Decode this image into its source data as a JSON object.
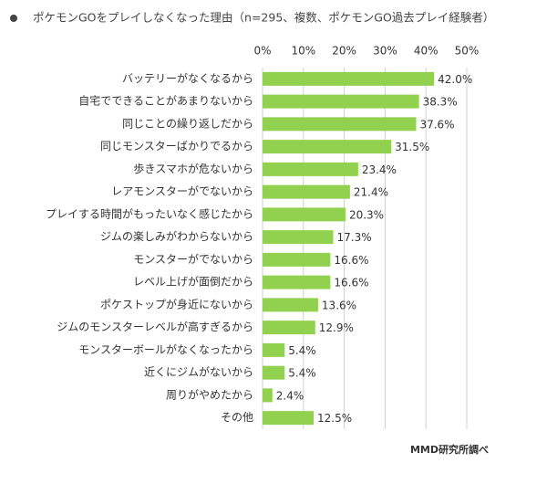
{
  "chart_data": {
    "type": "bar",
    "orientation": "horizontal",
    "title": "ポケモンGOをプレイしなくなった理由（n=295、複数、ポケモンGO過去プレイ経験者）",
    "categories": [
      "バッテリーがなくなるから",
      "自宅でできることがあまりないから",
      "同じことの繰り返しだから",
      "同じモンスターばかりでるから",
      "歩きスマホが危ないから",
      "レアモンスターがでないから",
      "プレイする時間がもったいなく感じたから",
      "ジムの楽しみがわからないから",
      "モンスターがでないから",
      "レベル上げが面倒だから",
      "ポケストップが身近にないから",
      "ジムのモンスターレベルが高すぎるから",
      "モンスターボールがなくなったから",
      "近くにジムがないから",
      "周りがやめたから",
      "その他"
    ],
    "values": [
      42.0,
      38.3,
      37.6,
      31.5,
      23.4,
      21.4,
      20.3,
      17.3,
      16.6,
      16.6,
      13.6,
      12.9,
      5.4,
      5.4,
      2.4,
      12.5
    ],
    "value_labels": [
      "42.0%",
      "38.3%",
      "37.6%",
      "31.5%",
      "23.4%",
      "21.4%",
      "20.3%",
      "17.3%",
      "16.6%",
      "16.6%",
      "13.6%",
      "12.9%",
      "5.4%",
      "5.4%",
      "2.4%",
      "12.5%"
    ],
    "color": "#92d050",
    "xlim": [
      0,
      50
    ],
    "xticks": [
      {
        "value": 0,
        "label": "0%"
      },
      {
        "value": 10,
        "label": "10%"
      },
      {
        "value": 20,
        "label": "20%"
      },
      {
        "value": 30,
        "label": "30%"
      },
      {
        "value": 40,
        "label": "40%"
      },
      {
        "value": 50,
        "label": "50%"
      }
    ],
    "grid": true,
    "source": "MMD研究所調べ"
  }
}
